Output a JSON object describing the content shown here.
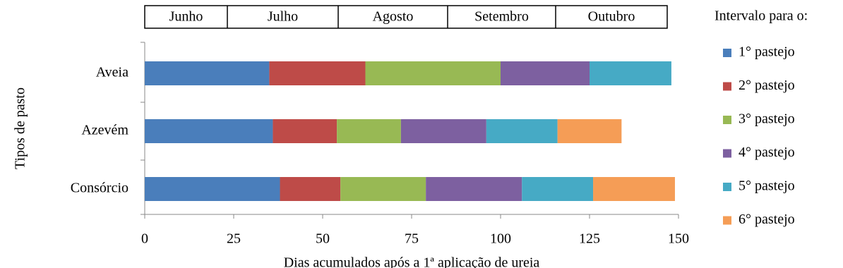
{
  "chart_data": {
    "type": "stacked-bar-horizontal",
    "months": [
      "Junho",
      "Julho",
      "Agosto",
      "Setembro",
      "Outubro"
    ],
    "categories": [
      "Aveia",
      "Azevém",
      "Consórcio"
    ],
    "series": [
      {
        "name": "1° pastejo",
        "color": "#4a7ebb",
        "values": [
          35,
          36,
          38
        ]
      },
      {
        "name": "2° pastejo",
        "color": "#be4b48",
        "values": [
          27,
          18,
          17
        ]
      },
      {
        "name": "3° pastejo",
        "color": "#98b954",
        "values": [
          38,
          18,
          24
        ]
      },
      {
        "name": "4° pastejo",
        "color": "#7d60a0",
        "values": [
          25,
          24,
          27
        ]
      },
      {
        "name": "5° pastejo",
        "color": "#46aac5",
        "values": [
          23,
          20,
          20
        ]
      },
      {
        "name": "6° pastejo",
        "color": "#f59d56",
        "values": [
          null,
          18,
          23
        ]
      }
    ],
    "xlim": [
      0,
      150
    ],
    "xticks": [
      0,
      25,
      50,
      75,
      100,
      125,
      150
    ],
    "x_label": "Dias acumulados após a 1ª aplicação de ureia",
    "y_label": "Tipos de pasto",
    "legend_title": "Intervalo para o:",
    "legend": "right"
  }
}
